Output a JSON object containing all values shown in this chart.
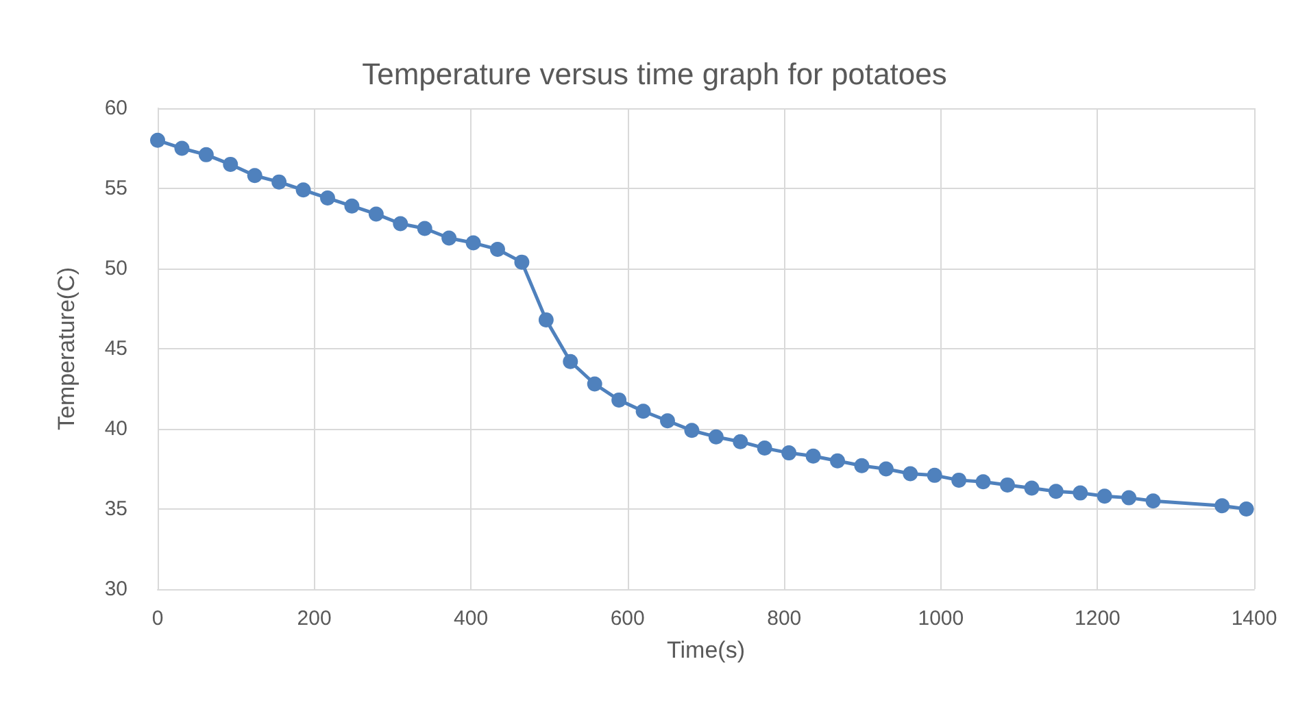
{
  "chart_data": {
    "type": "line",
    "title": "Temperature versus time graph for potatoes",
    "xlabel": "Time(s)",
    "ylabel": "Temperature(C)",
    "x": [
      0,
      31,
      62,
      93,
      124,
      155,
      186,
      217,
      248,
      279,
      310,
      341,
      372,
      403,
      434,
      465,
      496,
      527,
      558,
      589,
      620,
      651,
      682,
      713,
      744,
      775,
      806,
      837,
      868,
      899,
      930,
      961,
      992,
      1023,
      1054,
      1085,
      1116,
      1147,
      1178,
      1209,
      1240,
      1271,
      1359,
      1390
    ],
    "series": [
      {
        "color": "#4f81bd",
        "values": [
          58.0,
          57.5,
          57.1,
          56.5,
          55.8,
          55.4,
          54.9,
          54.4,
          53.9,
          53.4,
          52.8,
          52.5,
          51.9,
          51.6,
          51.2,
          50.4,
          46.8,
          44.2,
          42.8,
          41.8,
          41.1,
          40.5,
          39.9,
          39.5,
          39.2,
          38.8,
          38.5,
          38.3,
          38.0,
          37.7,
          37.5,
          37.2,
          37.1,
          36.8,
          36.7,
          36.5,
          36.3,
          36.1,
          36.0,
          35.8,
          35.7,
          35.5,
          35.2,
          35.0
        ]
      }
    ],
    "xlim": [
      0,
      1400
    ],
    "xticks": [
      0,
      200,
      400,
      600,
      800,
      1000,
      1200,
      1400
    ],
    "ylim": [
      30,
      60
    ],
    "yticks": [
      30,
      35,
      40,
      45,
      50,
      55,
      60
    ],
    "grid": true,
    "marker": "circle",
    "line_style": "solid"
  }
}
